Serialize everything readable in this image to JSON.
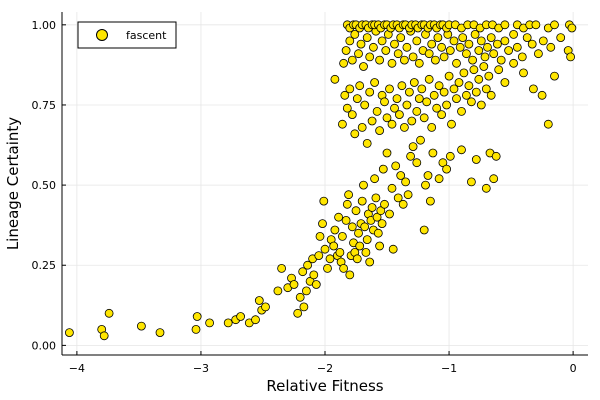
{
  "chart_data": {
    "type": "scatter",
    "title": "",
    "xlabel": "Relative Fitness",
    "ylabel": "Lineage Certainty",
    "xlim": [
      -4.12,
      0.12
    ],
    "ylim": [
      -0.03,
      1.04
    ],
    "xticks": [
      -4,
      -3,
      -2,
      -1,
      0
    ],
    "xtick_labels": [
      "−4",
      "−3",
      "−2",
      "−1",
      "0"
    ],
    "yticks": [
      0,
      0.25,
      0.5,
      0.75,
      1.0
    ],
    "ytick_labels": [
      "0.00",
      "0.25",
      "0.50",
      "0.75",
      "1.00"
    ],
    "grid": true,
    "legend": "top-left",
    "colors": {
      "marker_fill": "#FFE600",
      "marker_edge": "#000000",
      "grid": "#e6e6e6",
      "axis": "#000000"
    },
    "series": [
      {
        "name": "fascent",
        "points": [
          [
            -4.06,
            0.04
          ],
          [
            -3.8,
            0.05
          ],
          [
            -3.78,
            0.03
          ],
          [
            -3.74,
            0.1
          ],
          [
            -3.48,
            0.06
          ],
          [
            -3.33,
            0.04
          ],
          [
            -3.04,
            0.05
          ],
          [
            -3.03,
            0.09
          ],
          [
            -2.93,
            0.07
          ],
          [
            -2.78,
            0.07
          ],
          [
            -2.72,
            0.08
          ],
          [
            -2.68,
            0.09
          ],
          [
            -2.61,
            0.07
          ],
          [
            -2.56,
            0.08
          ],
          [
            -2.53,
            0.14
          ],
          [
            -2.51,
            0.11
          ],
          [
            -2.48,
            0.12
          ],
          [
            -2.38,
            0.17
          ],
          [
            -2.35,
            0.24
          ],
          [
            -2.3,
            0.18
          ],
          [
            -2.27,
            0.21
          ],
          [
            -2.25,
            0.19
          ],
          [
            -2.22,
            0.1
          ],
          [
            -2.2,
            0.15
          ],
          [
            -2.18,
            0.23
          ],
          [
            -2.17,
            0.12
          ],
          [
            -2.15,
            0.17
          ],
          [
            -2.14,
            0.25
          ],
          [
            -2.12,
            0.2
          ],
          [
            -2.1,
            0.27
          ],
          [
            -2.09,
            0.22
          ],
          [
            -2.07,
            0.19
          ],
          [
            -2.05,
            0.28
          ],
          [
            -2.04,
            0.34
          ],
          [
            -2.02,
            0.38
          ],
          [
            -2.01,
            0.45
          ],
          [
            -2.0,
            0.3
          ],
          [
            -1.98,
            0.24
          ],
          [
            -1.96,
            0.27
          ],
          [
            -1.95,
            0.33
          ],
          [
            -1.93,
            0.31
          ],
          [
            -1.92,
            0.36
          ],
          [
            -1.9,
            0.28
          ],
          [
            -1.89,
            0.4
          ],
          [
            -1.88,
            0.29
          ],
          [
            -1.87,
            0.26
          ],
          [
            -1.86,
            0.34
          ],
          [
            -1.85,
            0.24
          ],
          [
            -1.83,
            0.39
          ],
          [
            -1.82,
            0.44
          ],
          [
            -1.81,
            0.47
          ],
          [
            -1.8,
            0.22
          ],
          [
            -1.79,
            0.28
          ],
          [
            -1.78,
            0.37
          ],
          [
            -1.77,
            0.32
          ],
          [
            -1.76,
            0.29
          ],
          [
            -1.75,
            0.42
          ],
          [
            -1.74,
            0.27
          ],
          [
            -1.73,
            0.35
          ],
          [
            -1.72,
            0.31
          ],
          [
            -1.71,
            0.38
          ],
          [
            -1.7,
            0.45
          ],
          [
            -1.69,
            0.5
          ],
          [
            -1.68,
            0.37
          ],
          [
            -1.67,
            0.29
          ],
          [
            -1.66,
            0.33
          ],
          [
            -1.65,
            0.41
          ],
          [
            -1.64,
            0.26
          ],
          [
            -1.63,
            0.39
          ],
          [
            -1.62,
            0.43
          ],
          [
            -1.61,
            0.36
          ],
          [
            -1.6,
            0.52
          ],
          [
            -1.59,
            0.46
          ],
          [
            -1.58,
            0.4
          ],
          [
            -1.57,
            0.35
          ],
          [
            -1.56,
            0.31
          ],
          [
            -1.55,
            0.42
          ],
          [
            -1.54,
            0.38
          ],
          [
            -1.53,
            0.55
          ],
          [
            -1.52,
            0.44
          ],
          [
            -1.5,
            0.6
          ],
          [
            -1.48,
            0.41
          ],
          [
            -1.46,
            0.49
          ],
          [
            -1.45,
            0.3
          ],
          [
            -1.43,
            0.56
          ],
          [
            -1.41,
            0.46
          ],
          [
            -1.39,
            0.53
          ],
          [
            -1.37,
            0.44
          ],
          [
            -1.35,
            0.51
          ],
          [
            -1.33,
            0.47
          ],
          [
            -1.31,
            0.59
          ],
          [
            -1.29,
            0.62
          ],
          [
            -1.26,
            0.57
          ],
          [
            -1.23,
            0.64
          ],
          [
            -1.2,
            0.36
          ],
          [
            -1.19,
            0.5
          ],
          [
            -1.17,
            0.53
          ],
          [
            -1.15,
            0.45
          ],
          [
            -1.13,
            0.6
          ],
          [
            -1.08,
            0.52
          ],
          [
            -1.05,
            0.57
          ],
          [
            -1.02,
            0.55
          ],
          [
            -0.99,
            0.59
          ],
          [
            -0.9,
            0.61
          ],
          [
            -0.82,
            0.51
          ],
          [
            -0.78,
            0.58
          ],
          [
            -0.7,
            0.49
          ],
          [
            -0.67,
            0.6
          ],
          [
            -0.64,
            0.52
          ],
          [
            -0.62,
            0.59
          ],
          [
            -1.92,
            0.83
          ],
          [
            -1.86,
            0.69
          ],
          [
            -1.84,
            0.78
          ],
          [
            -1.82,
            0.74
          ],
          [
            -1.8,
            0.8
          ],
          [
            -1.78,
            0.72
          ],
          [
            -1.76,
            0.66
          ],
          [
            -1.74,
            0.77
          ],
          [
            -1.72,
            0.81
          ],
          [
            -1.7,
            0.68
          ],
          [
            -1.68,
            0.75
          ],
          [
            -1.66,
            0.63
          ],
          [
            -1.64,
            0.79
          ],
          [
            -1.62,
            0.7
          ],
          [
            -1.6,
            0.82
          ],
          [
            -1.58,
            0.73
          ],
          [
            -1.56,
            0.67
          ],
          [
            -1.54,
            0.78
          ],
          [
            -1.52,
            0.76
          ],
          [
            -1.5,
            0.71
          ],
          [
            -1.48,
            0.8
          ],
          [
            -1.46,
            0.69
          ],
          [
            -1.44,
            0.74
          ],
          [
            -1.42,
            0.77
          ],
          [
            -1.4,
            0.72
          ],
          [
            -1.38,
            0.81
          ],
          [
            -1.36,
            0.68
          ],
          [
            -1.34,
            0.75
          ],
          [
            -1.32,
            0.79
          ],
          [
            -1.3,
            0.7
          ],
          [
            -1.28,
            0.82
          ],
          [
            -1.26,
            0.73
          ],
          [
            -1.24,
            0.77
          ],
          [
            -1.22,
            0.8
          ],
          [
            -1.2,
            0.71
          ],
          [
            -1.18,
            0.76
          ],
          [
            -1.16,
            0.83
          ],
          [
            -1.14,
            0.68
          ],
          [
            -1.12,
            0.78
          ],
          [
            -1.1,
            0.74
          ],
          [
            -1.08,
            0.81
          ],
          [
            -1.06,
            0.72
          ],
          [
            -1.04,
            0.79
          ],
          [
            -1.02,
            0.75
          ],
          [
            -1.0,
            0.84
          ],
          [
            -0.98,
            0.69
          ],
          [
            -0.96,
            0.8
          ],
          [
            -0.94,
            0.77
          ],
          [
            -0.92,
            0.82
          ],
          [
            -0.9,
            0.73
          ],
          [
            -0.88,
            0.85
          ],
          [
            -0.86,
            0.78
          ],
          [
            -0.84,
            0.81
          ],
          [
            -0.82,
            0.76
          ],
          [
            -0.8,
            0.86
          ],
          [
            -0.78,
            0.79
          ],
          [
            -0.76,
            0.83
          ],
          [
            -0.74,
            0.75
          ],
          [
            -0.72,
            0.87
          ],
          [
            -0.7,
            0.8
          ],
          [
            -0.68,
            0.84
          ],
          [
            -0.66,
            0.78
          ],
          [
            -0.6,
            0.86
          ],
          [
            -0.55,
            0.82
          ],
          [
            -0.48,
            0.88
          ],
          [
            -0.4,
            0.85
          ],
          [
            -0.32,
            0.8
          ],
          [
            -0.25,
            0.78
          ],
          [
            -0.2,
            0.69
          ],
          [
            -0.15,
            0.84
          ],
          [
            -1.85,
            0.88
          ],
          [
            -1.83,
            0.92
          ],
          [
            -1.8,
            0.95
          ],
          [
            -1.78,
            0.89
          ],
          [
            -1.76,
            0.97
          ],
          [
            -1.73,
            0.91
          ],
          [
            -1.71,
            0.94
          ],
          [
            -1.69,
            0.87
          ],
          [
            -1.66,
            0.96
          ],
          [
            -1.64,
            0.9
          ],
          [
            -1.61,
            0.93
          ],
          [
            -1.59,
            0.98
          ],
          [
            -1.56,
            0.89
          ],
          [
            -1.54,
            0.95
          ],
          [
            -1.51,
            0.92
          ],
          [
            -1.49,
            0.97
          ],
          [
            -1.46,
            0.88
          ],
          [
            -1.44,
            0.94
          ],
          [
            -1.41,
            0.91
          ],
          [
            -1.39,
            0.96
          ],
          [
            -1.36,
            0.89
          ],
          [
            -1.34,
            0.93
          ],
          [
            -1.31,
            0.98
          ],
          [
            -1.29,
            0.9
          ],
          [
            -1.26,
            0.95
          ],
          [
            -1.24,
            0.88
          ],
          [
            -1.21,
            0.92
          ],
          [
            -1.19,
            0.97
          ],
          [
            -1.16,
            0.91
          ],
          [
            -1.14,
            0.94
          ],
          [
            -1.11,
            0.89
          ],
          [
            -1.09,
            0.96
          ],
          [
            -1.06,
            0.93
          ],
          [
            -1.04,
            0.9
          ],
          [
            -1.01,
            0.97
          ],
          [
            -0.99,
            0.92
          ],
          [
            -0.96,
            0.95
          ],
          [
            -0.94,
            0.88
          ],
          [
            -0.91,
            0.93
          ],
          [
            -0.89,
            0.96
          ],
          [
            -0.86,
            0.91
          ],
          [
            -0.84,
            0.94
          ],
          [
            -0.81,
            0.89
          ],
          [
            -0.79,
            0.97
          ],
          [
            -0.76,
            0.92
          ],
          [
            -0.74,
            0.95
          ],
          [
            -0.71,
            0.9
          ],
          [
            -0.69,
            0.93
          ],
          [
            -0.66,
            0.96
          ],
          [
            -0.64,
            0.91
          ],
          [
            -0.61,
            0.94
          ],
          [
            -0.58,
            0.89
          ],
          [
            -0.55,
            0.95
          ],
          [
            -0.52,
            0.92
          ],
          [
            -0.48,
            0.97
          ],
          [
            -0.45,
            0.93
          ],
          [
            -0.41,
            0.9
          ],
          [
            -0.37,
            0.96
          ],
          [
            -0.33,
            0.94
          ],
          [
            -0.28,
            0.91
          ],
          [
            -0.24,
            0.95
          ],
          [
            -0.18,
            0.93
          ],
          [
            -0.1,
            0.96
          ],
          [
            -0.04,
            0.92
          ],
          [
            -0.02,
            0.9
          ],
          [
            -1.82,
            1.0
          ],
          [
            -1.8,
            0.99
          ],
          [
            -1.77,
            1.0
          ],
          [
            -1.75,
            1.0
          ],
          [
            -1.72,
            0.99
          ],
          [
            -1.7,
            1.0
          ],
          [
            -1.67,
            1.0
          ],
          [
            -1.65,
            0.99
          ],
          [
            -1.62,
            1.0
          ],
          [
            -1.6,
            1.0
          ],
          [
            -1.57,
            1.0
          ],
          [
            -1.55,
            0.99
          ],
          [
            -1.52,
            1.0
          ],
          [
            -1.5,
            1.0
          ],
          [
            -1.47,
            0.99
          ],
          [
            -1.45,
            1.0
          ],
          [
            -1.42,
            1.0
          ],
          [
            -1.4,
            0.99
          ],
          [
            -1.37,
            1.0
          ],
          [
            -1.35,
            1.0
          ],
          [
            -1.32,
            0.99
          ],
          [
            -1.3,
            1.0
          ],
          [
            -1.27,
            1.0
          ],
          [
            -1.25,
            0.99
          ],
          [
            -1.22,
            1.0
          ],
          [
            -1.2,
            1.0
          ],
          [
            -1.17,
            0.99
          ],
          [
            -1.15,
            1.0
          ],
          [
            -1.12,
            1.0
          ],
          [
            -1.1,
            0.99
          ],
          [
            -1.07,
            1.0
          ],
          [
            -1.05,
            1.0
          ],
          [
            -1.02,
            0.99
          ],
          [
            -1.0,
            1.0
          ],
          [
            -0.95,
            1.0
          ],
          [
            -0.9,
            0.99
          ],
          [
            -0.85,
            1.0
          ],
          [
            -0.8,
            1.0
          ],
          [
            -0.75,
            0.99
          ],
          [
            -0.7,
            1.0
          ],
          [
            -0.65,
            1.0
          ],
          [
            -0.6,
            0.99
          ],
          [
            -0.55,
            1.0
          ],
          [
            -0.45,
            1.0
          ],
          [
            -0.4,
            0.99
          ],
          [
            -0.35,
            1.0
          ],
          [
            -0.3,
            1.0
          ],
          [
            -0.2,
            0.99
          ],
          [
            -0.15,
            1.0
          ],
          [
            -0.03,
            1.0
          ],
          [
            -0.01,
            0.99
          ]
        ]
      }
    ]
  }
}
